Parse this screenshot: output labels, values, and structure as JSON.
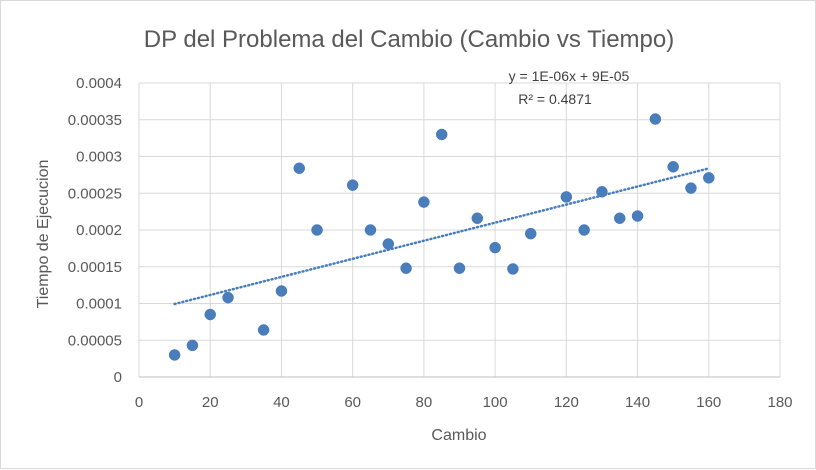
{
  "chart_data": {
    "type": "scatter",
    "title": "DP del Problema del Cambio (Cambio vs Tiempo)",
    "xlabel": "Cambio",
    "ylabel": "Tiempo de Ejecucion",
    "xlim": [
      0,
      180
    ],
    "ylim": [
      0,
      0.0004
    ],
    "x_ticks": [
      0,
      20,
      40,
      60,
      80,
      100,
      120,
      140,
      160,
      180
    ],
    "y_ticks": [
      0,
      5e-05,
      0.0001,
      0.00015,
      0.0002,
      0.00025,
      0.0003,
      0.00035,
      0.0004
    ],
    "x_tick_labels": [
      "0",
      "20",
      "40",
      "60",
      "80",
      "100",
      "120",
      "140",
      "160",
      "180"
    ],
    "y_tick_labels": [
      "0",
      "0.00005",
      "0.0001",
      "0.00015",
      "0.0002",
      "0.00025",
      "0.0003",
      "0.00035",
      "0.0004"
    ],
    "grid": "vertical and horizontal",
    "legend": "none",
    "marker_color": "#4a7ebb",
    "series": [
      {
        "x": [
          10,
          15,
          20,
          25,
          35,
          40,
          45,
          50,
          60,
          65,
          70,
          75,
          80,
          85,
          90,
          95,
          100,
          105,
          110,
          120,
          125,
          130,
          135,
          140,
          145,
          150,
          155,
          160
        ],
        "y": [
          3e-05,
          4.3e-05,
          8.5e-05,
          0.000108,
          6.4e-05,
          0.000117,
          0.000284,
          0.0002,
          0.000261,
          0.0002,
          0.000181,
          0.000148,
          0.000238,
          0.00033,
          0.000148,
          0.000216,
          0.000176,
          0.000147,
          0.000195,
          0.000245,
          0.0002,
          0.000252,
          0.000216,
          0.000219,
          0.000351,
          0.000286,
          0.000257,
          0.000271
        ]
      }
    ],
    "trendline": {
      "type": "linear",
      "x_range": [
        10,
        160
      ],
      "slope": 1.23e-06,
      "intercept": 8.7e-05,
      "equation_label": "y = 1E-06x + 9E-05",
      "r2_label": "R² = 0.4871"
    }
  }
}
